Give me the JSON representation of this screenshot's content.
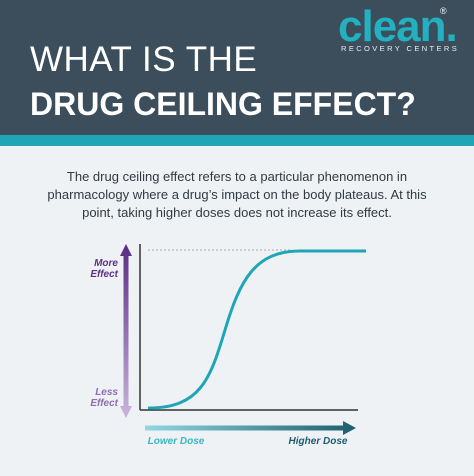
{
  "header": {
    "title_line1": "WHAT IS THE",
    "title_line2": "DRUG CEILING EFFECT?"
  },
  "logo": {
    "name": "clean.",
    "registered": "®",
    "tagline": "RECOVERY CENTERS"
  },
  "body": {
    "text": "The drug ceiling effect refers to a particular phenomenon in pharmacology where a drug’s impact on the body plateaus. At this point, taking higher doses does not increase its effect."
  },
  "figure": {
    "y_top": "More Effect",
    "y_bottom": "Less Effect",
    "x_left": "Lower Dose",
    "x_right": "Higher Dose"
  }
}
